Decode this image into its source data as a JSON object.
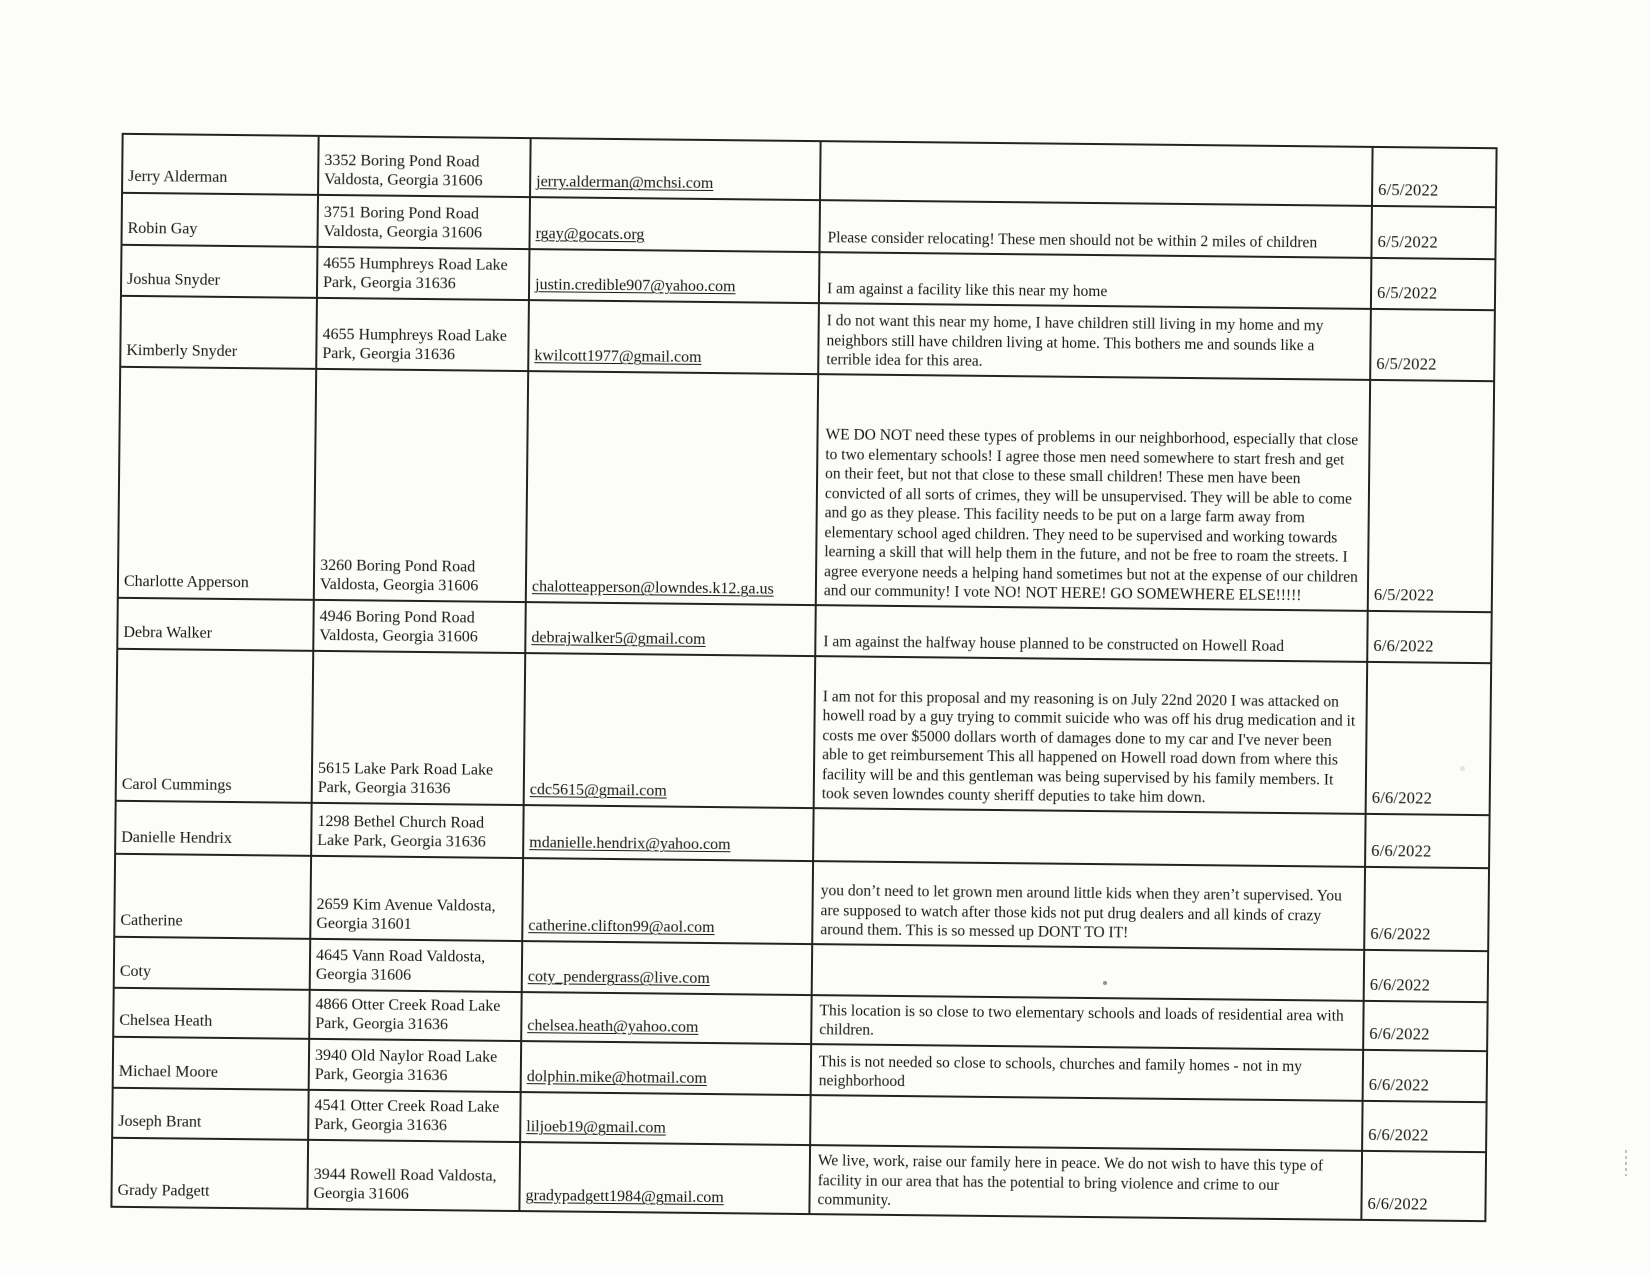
{
  "table": {
    "rows": [
      {
        "name": "Jerry Alderman",
        "address": "3352 Boring Pond Road Valdosta, Georgia 31606",
        "email": "jerry.alderman@mchsi.com",
        "comment": "",
        "date": "6/5/2022"
      },
      {
        "name": "Robin Gay",
        "address": "3751 Boring Pond Road Valdosta, Georgia 31606",
        "email": "rgay@gocats.org",
        "comment": "Please consider relocating! These men should not be within 2 miles of children",
        "date": "6/5/2022"
      },
      {
        "name": "Joshua Snyder",
        "address": "4655 Humphreys Road Lake Park, Georgia 31636",
        "email": "justin.credible907@yahoo.com",
        "comment": "I am against a facility like this near my home",
        "date": "6/5/2022"
      },
      {
        "name": "Kimberly Snyder",
        "address": "4655 Humphreys Road Lake Park, Georgia 31636",
        "email": "kwilcott1977@gmail.com",
        "comment": "I do not want this near my home, I have children still living in my home and my neighbors still have children living at home. This bothers me and sounds like a terrible idea for this area.",
        "date": "6/5/2022"
      },
      {
        "name": "Charlotte Apperson",
        "address": "3260 Boring Pond Road Valdosta, Georgia 31606",
        "email": "chalotteapperson@lowndes.k12.ga.us",
        "comment": "WE DO NOT need these types of problems in our neighborhood, especially that close to two elementary schools! I agree those men need somewhere to start fresh and get on their feet, but not that close to these small children! These men have been convicted of all sorts of crimes, they will be unsupervised. They will be able to come and go as they please. This facility needs to be put on a large farm away from elementary school aged children. They need to be supervised and working towards learning a skill that will help them in the future, and not be free to roam the streets. I agree everyone needs a helping hand sometimes but not at the expense of our children and our community! I vote NO! NOT HERE! GO SOMEWHERE ELSE!!!!!",
        "date": "6/5/2022"
      },
      {
        "name": "Debra Walker",
        "address": "4946 Boring Pond Road Valdosta, Georgia 31606",
        "email": "debrajwalker5@gmail.com",
        "comment": "I am against the halfway house planned to be constructed on Howell Road",
        "date": "6/6/2022"
      },
      {
        "name": "Carol Cummings",
        "address": "5615 Lake Park Road Lake Park, Georgia 31636",
        "email": "cdc5615@gmail.com",
        "comment": "I am not for this proposal and my reasoning is on July 22nd 2020 I was attacked on howell road by a guy trying to commit suicide who was off his drug medication and it costs me over $5000 dollars worth of damages done to my car and I've never been able to get reimbursement This all happened on Howell road down from where this facility will be and this gentleman was being supervised by his family members. It took seven lowndes county sheriff deputies to take him down.",
        "date": "6/6/2022"
      },
      {
        "name": "Danielle Hendrix",
        "address": "1298 Bethel Church Road Lake Park, Georgia 31636",
        "email": "mdanielle.hendrix@yahoo.com",
        "comment": "",
        "date": "6/6/2022"
      },
      {
        "name": "Catherine",
        "address": "2659 Kim Avenue Valdosta, Georgia 31601",
        "email": "catherine.clifton99@aol.com",
        "comment": "you don’t need to let grown men around little kids when they aren’t supervised. You are supposed to watch after those kids not put drug dealers and all kinds of crazy around them. This is so messed up DONT TO IT!",
        "date": "6/6/2022"
      },
      {
        "name": "Coty",
        "address": "4645 Vann Road Valdosta, Georgia 31606",
        "email": "coty_pendergrass@live.com",
        "comment": "",
        "date": "6/6/2022"
      },
      {
        "name": "Chelsea Heath",
        "address": "4866 Otter Creek Road Lake Park, Georgia 31636",
        "email": "chelsea.heath@yahoo.com",
        "comment": "This location is so close to two elementary schools and loads of residential area with children.",
        "date": "6/6/2022"
      },
      {
        "name": "Michael Moore",
        "address": "3940 Old Naylor Road Lake Park, Georgia 31636",
        "email": "dolphin.mike@hotmail.com",
        "comment": "This is not needed so close to schools, churches and family homes - not in my neighborhood",
        "date": "6/6/2022"
      },
      {
        "name": "Joseph Brant",
        "address": "4541 Otter Creek Road Lake Park, Georgia 31636",
        "email": "liljoeb19@gmail.com",
        "comment": "",
        "date": "6/6/2022"
      },
      {
        "name": "Grady Padgett",
        "address": "3944 Rowell Road Valdosta, Georgia 31606",
        "email": "gradypadgett1984@gmail.com",
        "comment": "We live, work, raise our family here in peace. We do not wish to have this type of facility in our area that has the potential to bring violence and crime to our community.",
        "date": "6/6/2022"
      }
    ]
  }
}
